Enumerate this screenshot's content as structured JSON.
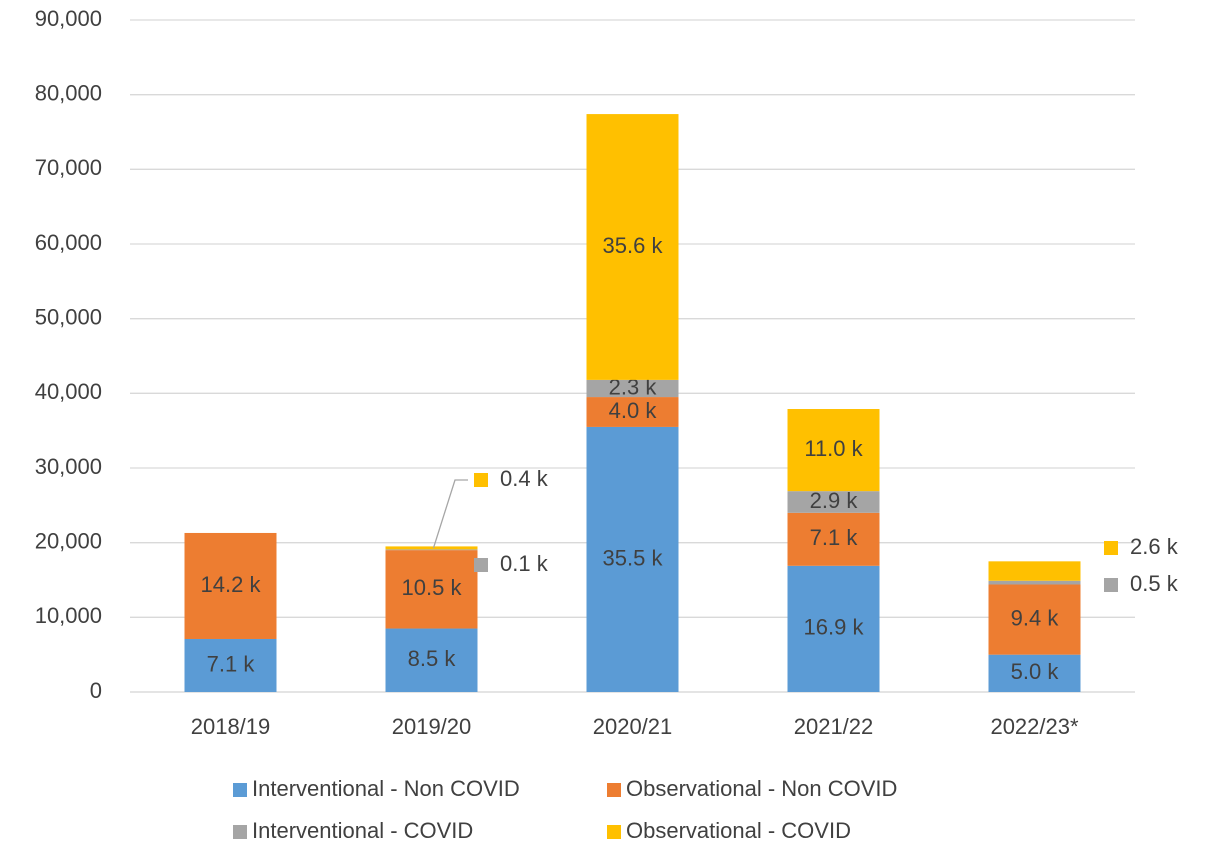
{
  "chart_data": {
    "type": "stacked_bar",
    "categories": [
      "2018/19",
      "2019/20",
      "2020/21",
      "2021/22",
      "2022/23*"
    ],
    "series": [
      {
        "name": "Interventional - Non COVID",
        "color": "#5b9bd5",
        "values": [
          7100,
          8500,
          35500,
          16900,
          5000
        ],
        "value_labels": [
          "7.1 k",
          "8.5 k",
          "35.5 k",
          "16.9 k",
          "5.0 k"
        ]
      },
      {
        "name": "Observational - Non COVID",
        "color": "#ed7d31",
        "values": [
          14200,
          10500,
          4000,
          7100,
          9400
        ],
        "value_labels": [
          "14.2 k",
          "10.5 k",
          "4.0 k",
          "7.1 k",
          "9.4 k"
        ]
      },
      {
        "name": "Interventional - COVID",
        "color": "#a5a5a5",
        "values": [
          null,
          100,
          2300,
          2900,
          500
        ],
        "value_labels": [
          null,
          "0.1 k",
          "2.3 k",
          "2.9 k",
          "0.5 k"
        ]
      },
      {
        "name": "Observational - COVID",
        "color": "#ffc000",
        "values": [
          null,
          400,
          35600,
          11000,
          2600
        ],
        "value_labels": [
          null,
          "0.4 k",
          "35.6 k",
          "11.0 k",
          "2.6 k"
        ]
      }
    ],
    "ylim": [
      0,
      90000
    ],
    "yticks": [
      0,
      {
        "value": 10000,
        "label": "10,000"
      },
      {
        "value": 20000,
        "label": "20,000"
      },
      {
        "value": 30000,
        "label": "30,000"
      },
      {
        "value": 40000,
        "label": "40,000"
      },
      {
        "value": 50000,
        "label": "50,000"
      },
      {
        "value": 60000,
        "label": "60,000"
      },
      {
        "value": 70000,
        "label": "70,000"
      },
      {
        "value": 80000,
        "label": "80,000"
      },
      {
        "value": 90000,
        "label": "90,000"
      }
    ],
    "grid": true
  }
}
